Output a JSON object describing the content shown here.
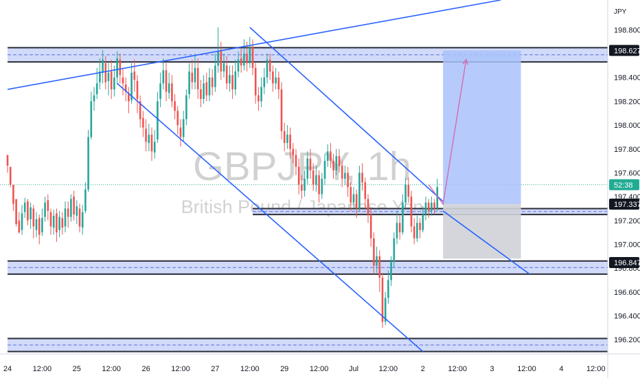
{
  "watermark": {
    "symbol": "GBPJPY, 1h",
    "description": "British Pound / Japanese Yen"
  },
  "currency": "JPY",
  "countdown": "52:38",
  "colors": {
    "up": "#26a69a",
    "down": "#ef5350",
    "zone_fill": "#c9d3f7",
    "zone_border": "#2a2e39",
    "zone_dash": "#5b6ee1",
    "trendline": "#2962ff",
    "target_fill": "#a9c2fb",
    "stop_fill": "#cfd2d8",
    "projection": "#d46bb0",
    "axis_text": "#131722",
    "price_badge": "#131722",
    "current_badge": "#22ab94"
  },
  "chart_data": {
    "type": "candlestick",
    "symbol": "GBPJPY",
    "timeframe": "1h",
    "y_axis": {
      "ticks": [
        198.8,
        198.4,
        198.2,
        198.0,
        197.8,
        197.6,
        197.4,
        197.2,
        197.0,
        196.8,
        196.6,
        196.4,
        196.2
      ],
      "tick_labels": [
        "198.800",
        "198.400",
        "198.200",
        "198.000",
        "197.800",
        "197.600",
        "197.400",
        "197.200",
        "197.000",
        "196.800",
        "196.600",
        "196.400",
        "196.200"
      ],
      "range": [
        196.08,
        199.05
      ]
    },
    "x_axis": {
      "labels": [
        "24",
        "12:00",
        "25",
        "12:00",
        "26",
        "12:00",
        "27",
        "12:00",
        "29",
        "12:00",
        "Jul",
        "12:00",
        "2",
        "12:00",
        "3",
        "12:00",
        "4",
        "12:00"
      ],
      "hour_offsets": [
        0,
        12,
        24,
        36,
        48,
        60,
        72,
        84,
        96,
        108,
        120,
        132,
        144,
        156,
        168,
        180,
        192,
        204
      ],
      "last_candle_offset": 150
    },
    "price_labels": [
      {
        "value": 198.627,
        "text": "198.627",
        "kind": "level"
      },
      {
        "value": 197.5,
        "text": "52:38",
        "kind": "current"
      },
      {
        "value": 197.337,
        "text": "197.337",
        "kind": "level"
      },
      {
        "value": 196.847,
        "text": "196.847",
        "kind": "level"
      }
    ],
    "zones": [
      {
        "top": 198.65,
        "bottom": 198.53,
        "start": 0,
        "end": 210
      },
      {
        "top": 197.3,
        "bottom": 197.25,
        "start": 85,
        "end": 210
      },
      {
        "top": 196.86,
        "bottom": 196.75,
        "start": 0,
        "end": 210
      },
      {
        "top": 196.21,
        "bottom": 196.1,
        "start": 0,
        "end": 210
      }
    ],
    "trendlines": [
      {
        "x1": 0,
        "y1": 198.3,
        "x2": 171,
        "y2": 199.05
      },
      {
        "x1": 84,
        "y1": 198.82,
        "x2": 151,
        "y2": 197.36
      },
      {
        "x1": 38,
        "y1": 198.35,
        "x2": 144,
        "y2": 196.1
      },
      {
        "x1": 151,
        "y1": 197.28,
        "x2": 181,
        "y2": 196.75
      }
    ],
    "position": {
      "start": 151,
      "end": 178,
      "entry": 197.337,
      "target": 198.627,
      "stop": 196.88
    },
    "projection": [
      {
        "x": 146,
        "y": 197.5
      },
      {
        "x": 151,
        "y": 197.337
      },
      {
        "x": 159,
        "y": 198.55
      }
    ],
    "candles": [
      [
        197.75,
        197.66,
        197.72,
        197.6
      ],
      [
        197.65,
        197.5,
        197.59,
        197.48
      ],
      [
        197.5,
        197.34,
        197.4,
        197.28
      ],
      [
        197.38,
        197.17,
        197.34,
        197.15
      ],
      [
        197.2,
        197.1,
        197.27,
        197.09
      ],
      [
        197.12,
        197.26,
        197.33,
        197.08
      ],
      [
        197.27,
        197.35,
        197.39,
        197.22
      ],
      [
        197.36,
        197.2,
        197.38,
        197.16
      ],
      [
        197.21,
        197.31,
        197.35,
        197.13
      ],
      [
        197.3,
        197.15,
        197.33,
        197.05
      ],
      [
        197.12,
        197.21,
        197.27,
        197.06
      ],
      [
        197.22,
        197.08,
        197.25,
        197.0
      ],
      [
        197.1,
        197.22,
        197.3,
        197.07
      ],
      [
        197.23,
        197.35,
        197.4,
        197.19
      ],
      [
        197.37,
        197.28,
        197.42,
        197.2
      ],
      [
        197.27,
        197.15,
        197.3,
        197.08
      ],
      [
        197.14,
        197.24,
        197.29,
        197.08
      ],
      [
        197.26,
        197.1,
        197.3,
        197.02
      ],
      [
        197.12,
        197.23,
        197.28,
        197.06
      ],
      [
        197.22,
        197.14,
        197.27,
        197.08
      ],
      [
        197.15,
        197.3,
        197.36,
        197.1
      ],
      [
        197.3,
        197.23,
        197.36,
        197.14
      ],
      [
        197.23,
        197.38,
        197.42,
        197.19
      ],
      [
        197.4,
        197.25,
        197.45,
        197.2
      ],
      [
        197.24,
        197.32,
        197.37,
        197.17
      ],
      [
        197.3,
        197.15,
        197.34,
        197.1
      ],
      [
        197.14,
        197.27,
        197.33,
        197.08
      ],
      [
        197.28,
        197.46,
        197.52,
        197.26
      ],
      [
        197.46,
        197.9,
        197.96,
        197.44
      ],
      [
        197.9,
        198.2,
        198.28,
        197.88
      ],
      [
        198.2,
        198.25,
        198.32,
        198.12
      ],
      [
        198.26,
        198.35,
        198.48,
        198.22
      ],
      [
        198.36,
        198.45,
        198.56,
        198.3
      ],
      [
        198.44,
        198.55,
        198.63,
        198.35
      ],
      [
        198.52,
        198.36,
        198.58,
        198.3
      ],
      [
        198.37,
        198.44,
        198.52,
        198.25
      ],
      [
        198.45,
        198.3,
        198.55,
        198.22
      ],
      [
        198.3,
        198.4,
        198.5,
        198.24
      ],
      [
        198.4,
        198.56,
        198.62,
        198.34
      ],
      [
        198.55,
        198.42,
        198.6,
        198.35
      ],
      [
        198.4,
        198.35,
        198.48,
        198.25
      ],
      [
        198.34,
        198.28,
        198.4,
        198.2
      ],
      [
        198.27,
        198.2,
        198.32,
        198.1
      ],
      [
        198.21,
        198.44,
        198.52,
        198.18
      ],
      [
        198.45,
        198.38,
        198.55,
        198.28
      ],
      [
        198.37,
        198.22,
        198.42,
        198.1
      ],
      [
        198.2,
        198.05,
        198.25,
        197.98
      ],
      [
        198.06,
        197.98,
        198.12,
        197.9
      ],
      [
        197.97,
        197.86,
        198.05,
        197.78
      ],
      [
        197.85,
        197.92,
        198.01,
        197.78
      ],
      [
        197.92,
        197.78,
        197.98,
        197.7
      ],
      [
        197.77,
        197.86,
        197.96,
        197.72
      ],
      [
        197.88,
        198.2,
        198.28,
        197.85
      ],
      [
        198.22,
        198.35,
        198.44,
        198.15
      ],
      [
        198.35,
        198.46,
        198.56,
        198.3
      ],
      [
        198.46,
        198.28,
        198.52,
        198.2
      ],
      [
        198.27,
        198.35,
        198.44,
        198.22
      ],
      [
        198.35,
        198.2,
        198.42,
        198.15
      ],
      [
        198.2,
        198.12,
        198.26,
        198.05
      ],
      [
        198.12,
        198.0,
        198.16,
        197.92
      ],
      [
        197.98,
        197.9,
        198.05,
        197.82
      ],
      [
        197.9,
        198.05,
        198.12,
        197.86
      ],
      [
        198.05,
        198.25,
        198.3,
        198.0
      ],
      [
        198.26,
        198.45,
        198.52,
        198.22
      ],
      [
        198.44,
        198.36,
        198.55,
        198.3
      ],
      [
        198.36,
        198.48,
        198.6,
        198.3
      ],
      [
        198.48,
        198.3,
        198.56,
        198.22
      ],
      [
        198.3,
        198.22,
        198.38,
        198.15
      ],
      [
        198.22,
        198.35,
        198.42,
        198.18
      ],
      [
        198.36,
        198.25,
        198.44,
        198.2
      ],
      [
        198.25,
        198.4,
        198.48,
        198.2
      ],
      [
        198.4,
        198.32,
        198.47,
        198.25
      ],
      [
        198.32,
        198.5,
        198.6,
        198.28
      ],
      [
        198.5,
        198.62,
        198.82,
        198.44
      ],
      [
        198.62,
        198.45,
        198.7,
        198.38
      ],
      [
        198.45,
        198.52,
        198.6,
        198.4
      ],
      [
        198.5,
        198.35,
        198.58,
        198.3
      ],
      [
        198.35,
        198.42,
        198.5,
        198.28
      ],
      [
        198.42,
        198.3,
        198.5,
        198.22
      ],
      [
        198.3,
        198.45,
        198.55,
        198.25
      ],
      [
        198.45,
        198.55,
        198.62,
        198.4
      ],
      [
        198.56,
        198.5,
        198.64,
        198.44
      ],
      [
        198.5,
        198.6,
        198.72,
        198.46
      ],
      [
        198.6,
        198.52,
        198.7,
        198.45
      ],
      [
        198.52,
        198.66,
        198.74,
        198.48
      ],
      [
        198.66,
        198.48,
        198.72,
        198.42
      ],
      [
        198.48,
        198.25,
        198.52,
        198.18
      ],
      [
        198.25,
        198.2,
        198.32,
        198.12
      ],
      [
        198.2,
        198.32,
        198.4,
        198.15
      ],
      [
        198.32,
        198.4,
        198.48,
        198.26
      ],
      [
        198.4,
        198.55,
        198.6,
        198.35
      ],
      [
        198.55,
        198.45,
        198.6,
        198.38
      ],
      [
        198.45,
        198.35,
        198.5,
        198.28
      ],
      [
        198.35,
        198.4,
        198.48,
        198.3
      ],
      [
        198.4,
        198.3,
        198.45,
        198.22
      ],
      [
        198.3,
        197.95,
        198.36,
        197.88
      ],
      [
        197.95,
        197.85,
        198.02,
        197.78
      ],
      [
        197.85,
        197.92,
        198.0,
        197.8
      ],
      [
        197.92,
        197.8,
        197.98,
        197.72
      ],
      [
        197.8,
        197.75,
        197.85,
        197.68
      ],
      [
        197.75,
        197.65,
        197.8,
        197.58
      ],
      [
        197.65,
        197.5,
        197.72,
        197.42
      ],
      [
        197.5,
        197.45,
        197.58,
        197.38
      ],
      [
        197.45,
        197.55,
        197.62,
        197.4
      ],
      [
        197.55,
        197.72,
        197.78,
        197.5
      ],
      [
        197.72,
        197.62,
        197.8,
        197.55
      ],
      [
        197.62,
        197.5,
        197.68,
        197.45
      ],
      [
        197.5,
        197.58,
        197.66,
        197.44
      ],
      [
        197.58,
        197.42,
        197.62,
        197.35
      ],
      [
        197.42,
        197.55,
        197.6,
        197.38
      ],
      [
        197.55,
        197.7,
        197.76,
        197.5
      ],
      [
        197.7,
        197.78,
        197.84,
        197.65
      ],
      [
        197.78,
        197.7,
        197.85,
        197.64
      ],
      [
        197.7,
        197.62,
        197.76,
        197.55
      ],
      [
        197.62,
        197.74,
        197.8,
        197.58
      ],
      [
        197.74,
        197.66,
        197.8,
        197.6
      ],
      [
        197.66,
        197.55,
        197.7,
        197.48
      ],
      [
        197.55,
        197.6,
        197.66,
        197.5
      ],
      [
        197.6,
        197.48,
        197.65,
        197.4
      ],
      [
        197.48,
        197.35,
        197.52,
        197.28
      ],
      [
        197.35,
        197.42,
        197.48,
        197.3
      ],
      [
        197.42,
        197.3,
        197.46,
        197.22
      ],
      [
        197.3,
        197.6,
        197.66,
        197.28
      ],
      [
        197.6,
        197.52,
        197.68,
        197.45
      ],
      [
        197.52,
        197.38,
        197.56,
        197.3
      ],
      [
        197.38,
        197.25,
        197.42,
        197.18
      ],
      [
        197.25,
        197.05,
        197.3,
        196.98
      ],
      [
        197.05,
        196.82,
        197.1,
        196.75
      ],
      [
        196.82,
        196.9,
        196.98,
        196.76
      ],
      [
        196.9,
        196.72,
        196.95,
        196.6
      ],
      [
        196.72,
        196.35,
        196.76,
        196.3
      ],
      [
        196.35,
        196.55,
        196.6,
        196.32
      ],
      [
        196.55,
        196.7,
        196.78,
        196.5
      ],
      [
        196.7,
        196.85,
        196.9,
        196.65
      ],
      [
        196.85,
        197.05,
        197.1,
        196.8
      ],
      [
        197.05,
        197.18,
        197.28,
        197.0
      ],
      [
        197.18,
        197.1,
        197.25,
        197.04
      ],
      [
        197.1,
        197.35,
        197.42,
        197.08
      ],
      [
        197.35,
        197.5,
        197.56,
        197.3
      ],
      [
        197.5,
        197.4,
        197.56,
        197.35
      ],
      [
        197.4,
        197.15,
        197.45,
        197.1
      ],
      [
        197.15,
        197.05,
        197.22,
        197.0
      ],
      [
        197.05,
        197.18,
        197.24,
        197.02
      ],
      [
        197.18,
        197.12,
        197.22,
        197.05
      ],
      [
        197.12,
        197.25,
        197.32,
        197.1
      ],
      [
        197.25,
        197.35,
        197.4,
        197.2
      ],
      [
        197.35,
        197.28,
        197.38,
        197.22
      ],
      [
        197.28,
        197.35,
        197.4,
        197.24
      ],
      [
        197.35,
        197.3,
        197.38,
        197.25
      ],
      [
        197.3,
        197.48,
        197.55,
        197.28
      ]
    ]
  }
}
